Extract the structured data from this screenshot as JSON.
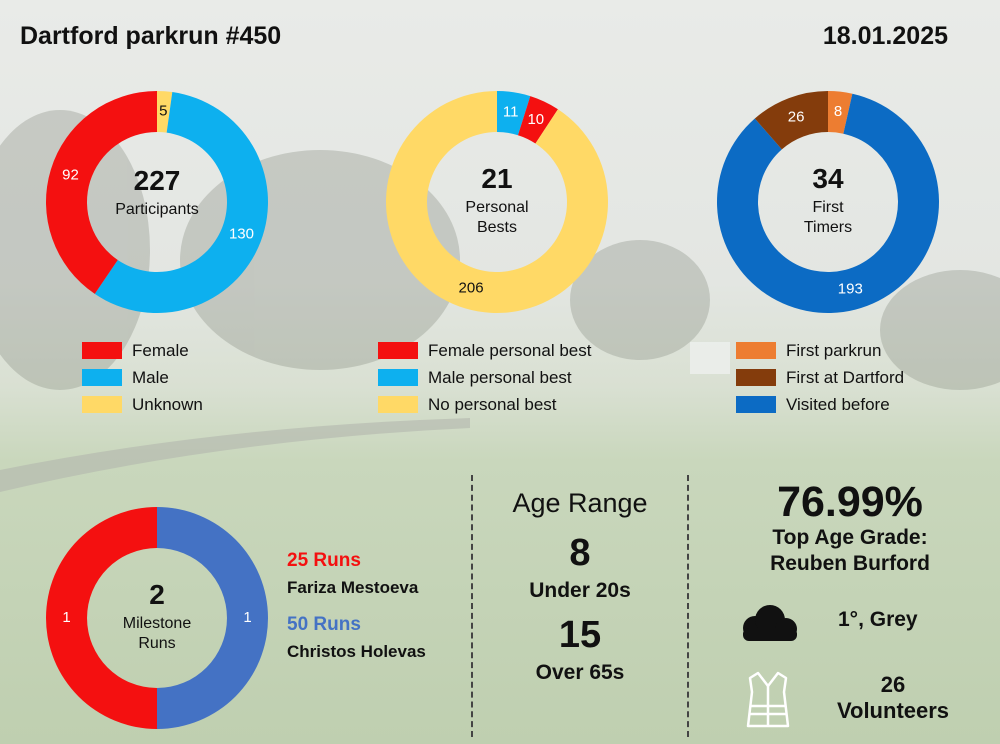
{
  "header": {
    "title": "Dartford parkrun #450",
    "date": "18.01.2025"
  },
  "colors": {
    "female": "#f41010",
    "male": "#0db0ef",
    "unknown": "#ffd966",
    "first_parkrun": "#ed7d31",
    "first_at_dartford": "#843c0c",
    "visited_before": "#0c6bc4",
    "milestone_25": "#f41010",
    "milestone_50": "#4472c4"
  },
  "chart_data": [
    {
      "type": "pie",
      "title": "",
      "center_value": "227",
      "center_label": [
        "Participants"
      ],
      "categories": [
        "Unknown",
        "Male",
        "Female"
      ],
      "values": [
        5,
        130,
        92
      ]
    },
    {
      "type": "pie",
      "title": "",
      "center_value": "21",
      "center_label": [
        "Personal",
        "Bests"
      ],
      "categories": [
        "Male personal best",
        "Female personal best",
        "No personal best"
      ],
      "values": [
        11,
        10,
        206
      ]
    },
    {
      "type": "pie",
      "title": "",
      "center_value": "34",
      "center_label": [
        "First",
        "Timers"
      ],
      "categories": [
        "First parkrun",
        "Visited before",
        "First at Dartford"
      ],
      "values": [
        8,
        193,
        26
      ]
    },
    {
      "type": "pie",
      "title": "",
      "center_value": "2",
      "center_label": [
        "Milestone",
        "Runs"
      ],
      "categories": [
        "50 Runs",
        "25 Runs"
      ],
      "values": [
        1,
        1
      ]
    }
  ],
  "legends": {
    "participants": [
      "Female",
      "Male",
      "Unknown"
    ],
    "personal_bests": [
      "Female personal best",
      "Male personal best",
      "No personal best"
    ],
    "first_timers": [
      "First parkrun",
      "First at Dartford",
      "Visited before"
    ]
  },
  "milestones": [
    {
      "label": "25 Runs",
      "name": "Fariza Mestoeva"
    },
    {
      "label": "50 Runs",
      "name": "Christos Holevas"
    }
  ],
  "age_range": {
    "title": "Age Range",
    "under_20s_value": "8",
    "under_20s_label": "Under 20s",
    "over_65s_value": "15",
    "over_65s_label": "Over 65s"
  },
  "stats": {
    "top_age_grade_value": "76.99%",
    "top_age_grade_label": "Top Age Grade:",
    "top_age_grade_name": "Reuben Burford",
    "weather": "1°, Grey",
    "weather_icon": "cloud-icon",
    "volunteers_value": "26",
    "volunteers_label": "Volunteers",
    "volunteers_icon": "hi-vis-vest-icon"
  }
}
